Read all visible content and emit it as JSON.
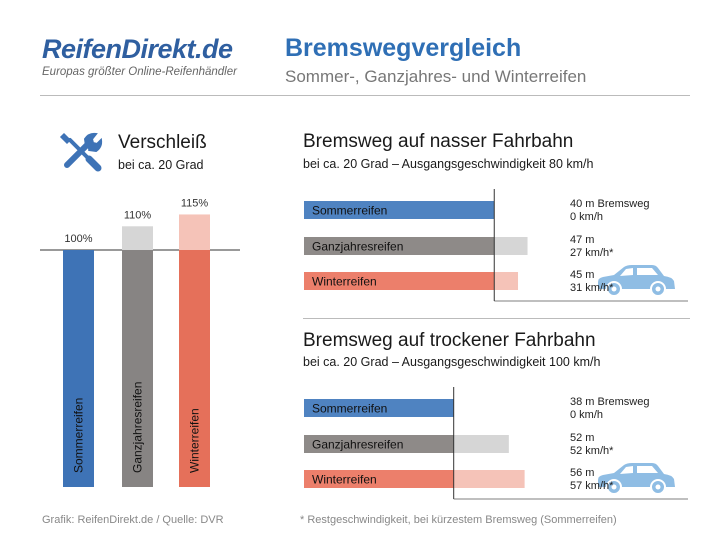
{
  "header": {
    "logo": "ReifenDirekt.de",
    "logo_tagline": "Europas größter Online-Reifenhändler",
    "title": "Bremswegvergleich",
    "subtitle": "Sommer-, Ganzjahres- und Winterreifen"
  },
  "footer": {
    "source": "Grafik: ReifenDirekt.de / Quelle: DVR",
    "note": "* Restgeschwindigkeit, bei kürzestem Bremsweg (Sommerreifen)"
  },
  "icons": [
    "wrench-screwdriver-icon",
    "car-icon"
  ],
  "colors": {
    "sommer": "#4f83c1",
    "sommer_bar": "#3e73b6",
    "ganzjahres": "#8e8a88",
    "ganzjahres_bar": "#878483",
    "winter": "#ec7f6b",
    "winter_bar": "#e5705a",
    "extra_sommer": "#c7d8ee",
    "extra_ganzjahres": "#d6d6d6",
    "extra_winter": "#f5c3b8",
    "car": "#8fbde4"
  },
  "chart_data": [
    {
      "type": "bar",
      "title": "Verschleiß",
      "subtitle": "bei ca. 20 Grad",
      "categories": [
        "Sommerreifen",
        "Ganzjahresreifen",
        "Winterreifen"
      ],
      "value_labels": [
        "100%",
        "110%",
        "115%"
      ],
      "values": [
        100,
        110,
        115
      ],
      "ylim": [
        0,
        115
      ]
    },
    {
      "type": "bar",
      "orientation": "horizontal",
      "title": "Bremsweg auf nasser Fahrbahn",
      "subtitle": "bei ca. 20 Grad – Ausgangsgeschwindigkeit 80 km/h",
      "categories": [
        "Sommerreifen",
        "Ganzjahresreifen",
        "Winterreifen"
      ],
      "values": [
        40,
        47,
        45
      ],
      "annotations": [
        [
          "40 m Bremsweg",
          "0 km/h"
        ],
        [
          "47 m",
          "27 km/h*"
        ],
        [
          "45 m",
          "31 km/h*"
        ]
      ]
    },
    {
      "type": "bar",
      "orientation": "horizontal",
      "title": "Bremsweg auf trockener Fahrbahn",
      "subtitle": "bei ca. 20 Grad – Ausgangsgeschwindigkeit 100 km/h",
      "categories": [
        "Sommerreifen",
        "Ganzjahresreifen",
        "Winterreifen"
      ],
      "values": [
        38,
        52,
        56
      ],
      "annotations": [
        [
          "38 m Bremsweg",
          "0 km/h"
        ],
        [
          "52 m",
          "52 km/h*"
        ],
        [
          "56 m",
          "57 km/h*"
        ]
      ]
    }
  ]
}
